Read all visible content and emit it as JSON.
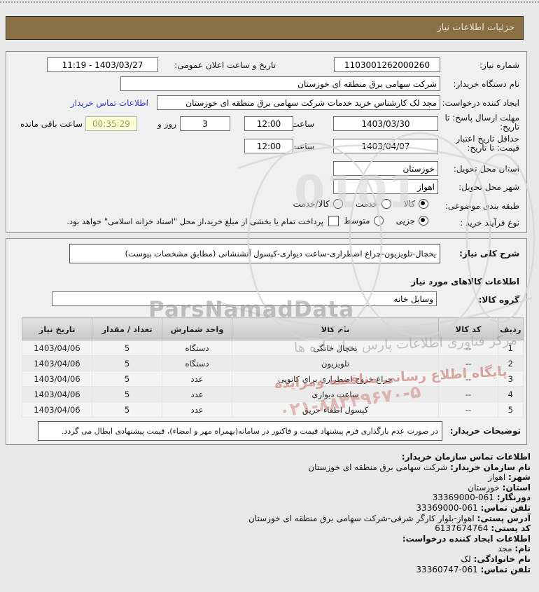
{
  "title_bar": "جزئیات اطلاعات نیاز",
  "general": {
    "need_number_label": "شماره نیاز:",
    "need_number": "1103001262000260",
    "announce_label": "تاریخ و ساعت اعلان عمومی:",
    "announce_value": "11:19 - 1403/03/27",
    "buyer_org_label": "نام دستگاه خریدار:",
    "buyer_org": "شرکت سهامی برق منطقه ای خوزستان",
    "creator_label": "ایجاد کننده درخواست:",
    "creator": "مجد لک کارشناس خرید خدمات شرکت سهامی برق منطقه ای خوزستان",
    "buyer_contact_link": "اطلاعات تماس خریدار",
    "deadline_label": "مهلت ارسال پاسخ: تا تاریخ:",
    "deadline_date": "1403/03/30",
    "hour_label": "ساعت",
    "deadline_time": "12:00",
    "days_value": "3",
    "days_label": "روز و",
    "timer_value": "00:35:29",
    "remaining_label": "ساعت باقی مانده",
    "validity_label": "حداقل تاریخ اعتبار قیمت: تا تاریخ:",
    "validity_date": "1403/04/07",
    "validity_time": "12:00",
    "province_label": "استان محل تحویل:",
    "province": "خوزستان",
    "city_label": "شهر محل تحویل:",
    "city": "اهواز",
    "category_label": "طبقه بندی موضوعی:",
    "category_options": [
      {
        "label": "کالا",
        "selected": true
      },
      {
        "label": "خدمت",
        "selected": false
      },
      {
        "label": "کالا/خدمت",
        "selected": false
      }
    ],
    "process_label": "نوع فرآیند خرید :",
    "process_options": [
      {
        "label": "جزیی",
        "selected": true
      },
      {
        "label": "متوسط",
        "selected": false
      }
    ],
    "treasury_checkbox_checked": false,
    "treasury_note": "پرداخت تمام یا بخشی از مبلغ خرید،از محل \"اسناد خزانه اسلامی\" خواهد بود."
  },
  "need_section": {
    "desc_label": "شرح کلی نیاز:",
    "desc": "یخچال-تلویزیون-چراغ اضطراری-ساعت دیواری-کپسول آتشنشانی (مطابق مشخصات پیوست)",
    "items_heading": "اطلاعات کالاهای مورد نیاز",
    "group_label": "گروه کالا:",
    "group_value": "وسایل خانه"
  },
  "items_table": {
    "headers": [
      "ردیف",
      "کد کالا",
      "نام کالا",
      "واحد شمارش",
      "تعداد / مقدار",
      "تاریخ نیاز"
    ],
    "rows": [
      [
        "1",
        "--",
        "یخچال خانگی",
        "دستگاه",
        "5",
        "1403/04/06"
      ],
      [
        "2",
        "--",
        "تلویزیون",
        "دستگاه",
        "5",
        "1403/04/06"
      ],
      [
        "3",
        "--",
        "چراغ خروج اضطراری برای کانوپی",
        "عدد",
        "5",
        "1403/04/06"
      ],
      [
        "4",
        "--",
        "ساعت دیواری",
        "عدد",
        "5",
        "1403/04/06"
      ],
      [
        "5",
        "--",
        "کپسول اطفاء حریق",
        "عدد",
        "5",
        "1403/04/06"
      ]
    ]
  },
  "buyer_notes": {
    "label": "توضیحات خریدار:",
    "text": "در صورت عدم بارگذاری فرم پیشنهاد قیمت و فاکتور در سامانه(بهمراه مهر و امضاء)، قیمت پیشنهادی ابطال می گردد."
  },
  "contact": {
    "lines": [
      {
        "label": "اطلاعات تماس سازمان خریدار:",
        "value": ""
      },
      {
        "label": "نام سازمان خریدار:",
        "value": "شرکت سهامی برق منطقه ای خوزستان"
      },
      {
        "label": "شهر:",
        "value": "اهواز"
      },
      {
        "label": "استان:",
        "value": "خوزستان"
      },
      {
        "label": "دورنگار:",
        "value": "33369000-061",
        "ltr": true
      },
      {
        "label": "تلفن تماس:",
        "value": "33369000-061",
        "ltr": true
      },
      {
        "label": "آدرس پستی:",
        "value": "اهواز-بلوار کارگر شرقی-شرکت سهامی برق منطقه ای خوزستان"
      },
      {
        "label": "کد پستی:",
        "value": "6137674764",
        "ltr": true
      },
      {
        "label": "اطلاعات ایجاد کننده درخواست:",
        "value": ""
      },
      {
        "label": "نام:",
        "value": "مجد"
      },
      {
        "label": "نام خانوادگی:",
        "value": "لک"
      },
      {
        "label": "تلفن تماس:",
        "value": "33360747-061",
        "ltr": true
      }
    ]
  },
  "watermarks": {
    "pars_namad": "ParsNamadData",
    "red_line": "پایگاه اطلاع رسانی مناقصه ومزایده",
    "red_phone": "۰۲۱-۸۸۳۴۹۶۷۰-۵",
    "gray_line": "مرکز فناوری اطلاعات پارس نماد داده ها",
    "digits": "0101"
  },
  "colors": {
    "title_bar_bg": "#8a6e44",
    "panel_bg": "#f0f0f0",
    "timer_bg": "#ffffd6",
    "link_blue": "#3a3ace",
    "watermark_red": "#c77066"
  }
}
